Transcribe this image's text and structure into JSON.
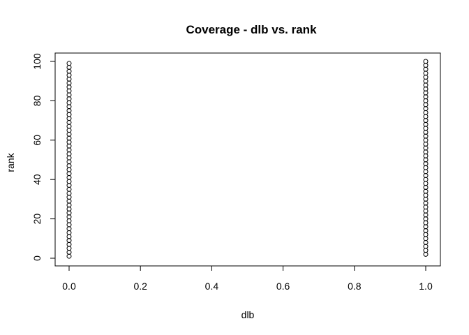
{
  "chart_data": {
    "type": "scatter",
    "title": "Coverage - dlb vs. rank",
    "xlabel": "dlb",
    "ylabel": "rank",
    "xlim": [
      0.0,
      1.0
    ],
    "ylim": [
      1,
      100
    ],
    "x_ticks": [
      "0.0",
      "0.2",
      "0.4",
      "0.6",
      "0.8",
      "1.0"
    ],
    "y_ticks": [
      "0",
      "20",
      "40",
      "60",
      "80",
      "100"
    ],
    "grid": false,
    "legend": "none",
    "marker": "open-circle",
    "series": [
      {
        "x": [
          0,
          0,
          0,
          0,
          0,
          0,
          0,
          0,
          0,
          0,
          0,
          0,
          0,
          0,
          0,
          0,
          0,
          0,
          0,
          0,
          0,
          0,
          0,
          0,
          0,
          0,
          0,
          0,
          0,
          0,
          0,
          0,
          0,
          0,
          0,
          0,
          0,
          0,
          0,
          0,
          0,
          0,
          0,
          0,
          0,
          0,
          0,
          0,
          0,
          0,
          1,
          1,
          1,
          1,
          1,
          1,
          1,
          1,
          1,
          1,
          1,
          1,
          1,
          1,
          1,
          1,
          1,
          1,
          1,
          1,
          1,
          1,
          1,
          1,
          1,
          1,
          1,
          1,
          1,
          1,
          1,
          1,
          1,
          1,
          1,
          1,
          1,
          1,
          1,
          1,
          1,
          1,
          1,
          1,
          1,
          1,
          1,
          1,
          1,
          1
        ],
        "y": [
          1,
          3,
          5,
          7,
          9,
          11,
          13,
          15,
          17,
          19,
          21,
          23,
          25,
          27,
          29,
          31,
          33,
          35,
          37,
          39,
          41,
          43,
          45,
          47,
          49,
          51,
          53,
          55,
          57,
          59,
          61,
          63,
          65,
          67,
          69,
          71,
          73,
          75,
          77,
          79,
          81,
          83,
          85,
          87,
          89,
          91,
          93,
          95,
          97,
          99,
          2,
          4,
          6,
          8,
          10,
          12,
          14,
          16,
          18,
          20,
          22,
          24,
          26,
          28,
          30,
          32,
          34,
          36,
          38,
          40,
          42,
          44,
          46,
          48,
          50,
          52,
          54,
          56,
          58,
          60,
          62,
          64,
          66,
          68,
          70,
          72,
          74,
          76,
          78,
          80,
          82,
          84,
          86,
          88,
          90,
          92,
          94,
          96,
          98,
          100
        ]
      }
    ]
  }
}
